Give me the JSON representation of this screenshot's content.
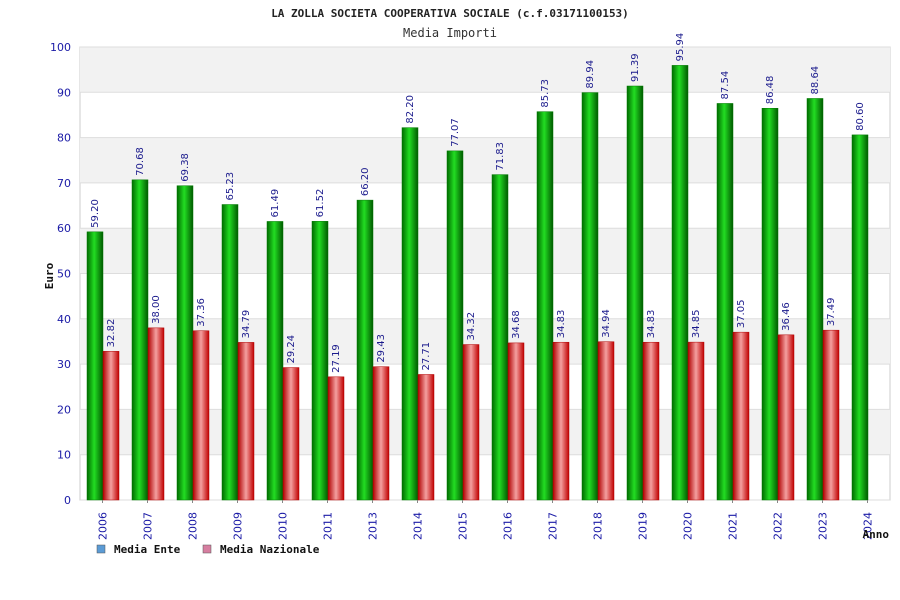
{
  "chart_data": {
    "type": "bar",
    "title": "LA ZOLLA SOCIETA COOPERATIVA SOCIALE (c.f.03171100153)",
    "subtitle": "Media Importi",
    "xlabel": "Anno",
    "ylabel": "Euro",
    "ylim": [
      0,
      100
    ],
    "yticks": [
      0,
      10,
      20,
      30,
      40,
      50,
      60,
      70,
      80,
      90,
      100
    ],
    "grid": true,
    "legend_position": "bottom-left",
    "categories": [
      "2006",
      "2007",
      "2008",
      "2009",
      "2010",
      "2011",
      "2013",
      "2014",
      "2015",
      "2016",
      "2017",
      "2018",
      "2019",
      "2020",
      "2021",
      "2022",
      "2023",
      "2024"
    ],
    "series": [
      {
        "name": "Media Ente",
        "color": "#00b000",
        "legend_color": "#5b9bd5",
        "values": [
          59.2,
          70.68,
          69.38,
          65.23,
          61.49,
          61.52,
          66.2,
          82.2,
          77.07,
          71.83,
          85.73,
          89.94,
          91.39,
          95.94,
          87.54,
          86.48,
          88.64,
          80.6
        ],
        "labels": [
          "59.20",
          "70.68",
          "69.38",
          "65.23",
          "61.49",
          "61.52",
          "66.20",
          "82.20",
          "77.07",
          "71.83",
          "85.73",
          "89.94",
          "91.39",
          "95.94",
          "87.54",
          "86.48",
          "88.64",
          "80.60"
        ]
      },
      {
        "name": "Media Nazionale",
        "color": "#e00000",
        "legend_color": "#d67ea0",
        "values": [
          32.82,
          38.0,
          37.36,
          34.79,
          29.24,
          27.19,
          29.43,
          27.71,
          34.32,
          34.68,
          34.83,
          34.94,
          34.83,
          34.85,
          37.05,
          36.46,
          37.49,
          null
        ],
        "labels": [
          "32.82",
          "38.00",
          "37.36",
          "34.79",
          "29.24",
          "27.19",
          "29.43",
          "27.71",
          "34.32",
          "34.68",
          "34.83",
          "34.94",
          "34.83",
          "34.85",
          "37.05",
          "36.46",
          "37.49",
          null
        ]
      }
    ]
  }
}
